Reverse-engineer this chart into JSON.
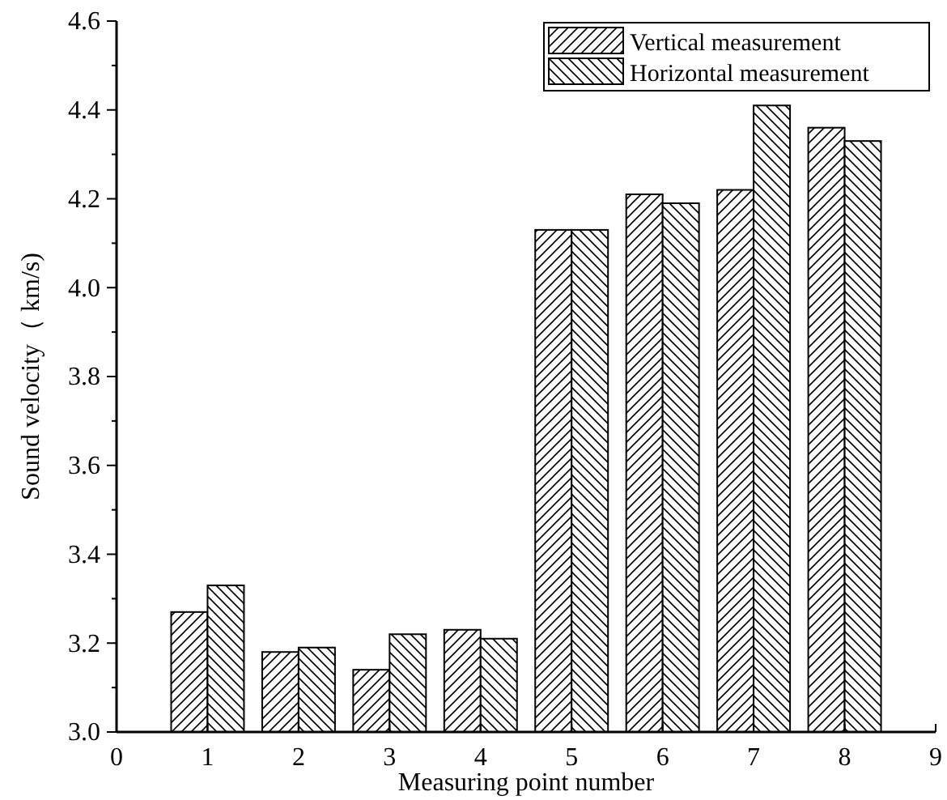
{
  "chart_data": {
    "type": "bar",
    "xlabel": "Measuring point number",
    "ylabel": "Sound velocity（ km/s)",
    "x": [
      1,
      2,
      3,
      4,
      5,
      6,
      7,
      8
    ],
    "series": [
      {
        "name": "Vertical measurement",
        "color": "#000000",
        "values": [
          3.27,
          3.18,
          3.14,
          3.23,
          4.13,
          4.21,
          4.22,
          4.36
        ]
      },
      {
        "name": "Horizontal measurement",
        "color": "#000000",
        "values": [
          3.33,
          3.19,
          3.22,
          3.21,
          4.13,
          4.19,
          4.41,
          4.33
        ]
      }
    ],
    "xlim": [
      0,
      9
    ],
    "xticks": [
      0,
      1,
      2,
      3,
      4,
      5,
      6,
      7,
      8,
      9
    ],
    "ylim": [
      3.0,
      4.6
    ],
    "yticks": [
      {
        "value": 3.0,
        "label": "3.0"
      },
      {
        "value": 3.1,
        "label": null
      },
      {
        "value": 3.2,
        "label": "3.2"
      },
      {
        "value": 3.3,
        "label": null
      },
      {
        "value": 3.4,
        "label": "3.4"
      },
      {
        "value": 3.5,
        "label": null
      },
      {
        "value": 3.6,
        "label": "3.6"
      },
      {
        "value": 3.7,
        "label": null
      },
      {
        "value": 3.8,
        "label": "3.8"
      },
      {
        "value": 3.9,
        "label": null
      },
      {
        "value": 4.0,
        "label": "4.0"
      },
      {
        "value": 4.1,
        "label": null
      },
      {
        "value": 4.2,
        "label": "4.2"
      },
      {
        "value": 4.3,
        "label": null
      },
      {
        "value": 4.4,
        "label": "4.4"
      },
      {
        "value": 4.5,
        "label": null
      },
      {
        "value": 4.6,
        "label": "4.6"
      }
    ],
    "legend": "top right"
  }
}
